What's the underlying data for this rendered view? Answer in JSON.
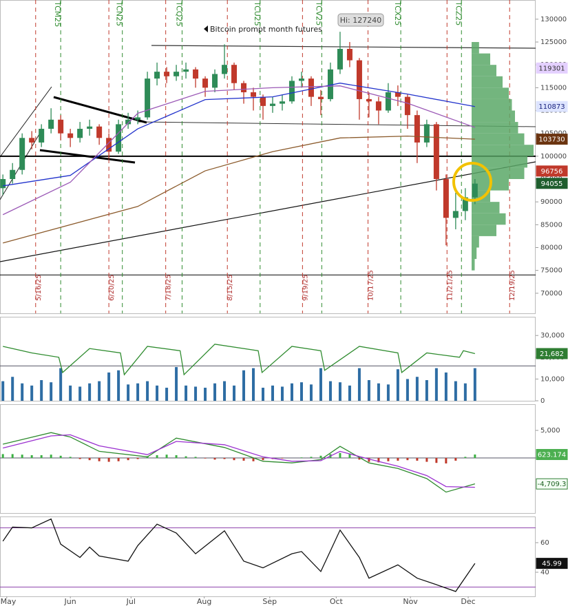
{
  "chart_data": [
    {
      "type": "candlestick",
      "ohlc": [
        [
          93000,
          96000,
          91500,
          95000
        ],
        [
          95000,
          98500,
          94000,
          97000
        ],
        [
          97000,
          105000,
          96000,
          104000
        ],
        [
          104000,
          105500,
          101500,
          103000
        ],
        [
          103000,
          107000,
          102000,
          106000
        ],
        [
          106000,
          110500,
          105000,
          108000
        ],
        [
          108000,
          109000,
          103500,
          105000
        ],
        [
          105000,
          106000,
          102000,
          104000
        ],
        [
          104000,
          107500,
          103000,
          106000
        ],
        [
          106000,
          108000,
          104500,
          106500
        ],
        [
          106500,
          107000,
          102500,
          104000
        ],
        [
          104000,
          105000,
          99500,
          101000
        ],
        [
          101000,
          108000,
          100500,
          107000
        ],
        [
          107000,
          109500,
          106000,
          108000
        ],
        [
          108000,
          110000,
          107000,
          108500
        ],
        [
          108500,
          118500,
          108000,
          117000
        ],
        [
          117000,
          120500,
          115500,
          118500
        ],
        [
          118500,
          119500,
          116000,
          117500
        ],
        [
          117500,
          120000,
          116500,
          118500
        ],
        [
          118500,
          120500,
          117000,
          119000
        ],
        [
          119000,
          119500,
          115000,
          117000
        ],
        [
          117000,
          117500,
          113000,
          115000
        ],
        [
          115000,
          119000,
          114000,
          118000
        ],
        [
          118000,
          124500,
          117000,
          120000
        ],
        [
          120000,
          120500,
          114500,
          116000
        ],
        [
          116000,
          116500,
          111500,
          114000
        ],
        [
          114000,
          115000,
          110000,
          113000
        ],
        [
          113000,
          113500,
          108000,
          111000
        ],
        [
          111000,
          113000,
          109500,
          111500
        ],
        [
          111500,
          113500,
          110000,
          112000
        ],
        [
          112000,
          117500,
          111500,
          116500
        ],
        [
          116500,
          118500,
          115000,
          117000
        ],
        [
          117000,
          117500,
          111000,
          113000
        ],
        [
          113000,
          114500,
          109000,
          112500
        ],
        [
          112500,
          120500,
          112000,
          119000
        ],
        [
          119000,
          127240,
          118000,
          123500
        ],
        [
          123500,
          125000,
          119500,
          121000
        ],
        [
          121000,
          121500,
          108000,
          112500
        ],
        [
          112500,
          114000,
          108500,
          112000
        ],
        [
          112000,
          113000,
          107000,
          110000
        ],
        [
          110000,
          116000,
          109500,
          114000
        ],
        [
          114000,
          115500,
          111000,
          113000
        ],
        [
          113000,
          113500,
          106000,
          109000
        ],
        [
          109000,
          110000,
          98500,
          103000
        ],
        [
          103000,
          108000,
          102000,
          107000
        ],
        [
          107000,
          107500,
          92500,
          95000
        ],
        [
          95000,
          96000,
          80500,
          86500
        ],
        [
          86500,
          92000,
          84000,
          88000
        ],
        [
          88000,
          93000,
          86000,
          91000
        ],
        [
          91000,
          95000,
          89500,
          94000
        ]
      ],
      "up_color": "#2e8b57",
      "down_color": "#c0392b",
      "xlim": [
        -0.3,
        55.3
      ],
      "ylim": [
        65600,
        134200
      ],
      "yticks": [
        70000,
        75000,
        80000,
        85000,
        90000,
        95000,
        100000,
        105000,
        110000,
        115000,
        120000,
        125000,
        130000
      ],
      "hlines": [
        {
          "value": 100000,
          "bold": true
        },
        {
          "value": 74000,
          "bold": false
        }
      ],
      "series": [
        {
          "color": "#2233cc",
          "x": [
            0,
            7,
            14,
            21,
            28,
            35,
            42,
            49
          ],
          "values": [
            93500,
            95800,
            106000,
            112400,
            113000,
            116000,
            113600,
            110873
          ]
        },
        {
          "color": "#9b59b6",
          "x": [
            0,
            7,
            14,
            21,
            28,
            35,
            42,
            49
          ],
          "values": [
            87200,
            94300,
            109400,
            114200,
            115000,
            115400,
            111600,
            106300
          ]
        },
        {
          "color": "#8b5a2b",
          "x": [
            0,
            14,
            21,
            28,
            35,
            42,
            49
          ],
          "values": [
            81000,
            89000,
            96800,
            101000,
            104000,
            104400,
            103730
          ]
        }
      ],
      "expiries": [
        {
          "label": "TCM25",
          "x": 6
        },
        {
          "label": "TCN25",
          "x": 12.4
        },
        {
          "label": "TCQ25",
          "x": 18.6
        },
        {
          "label": "TCU25",
          "x": 26.7
        },
        {
          "label": "TCV25",
          "x": 33.1
        },
        {
          "label": "TCX25",
          "x": 41.3
        },
        {
          "label": "TCZ25",
          "x": 47.6
        }
      ],
      "dates": [
        {
          "label": "5/16/25",
          "x": 3.4
        },
        {
          "label": "6/20/25",
          "x": 11
        },
        {
          "label": "7/18/25",
          "x": 16.9
        },
        {
          "label": "8/15/25",
          "x": 23.3
        },
        {
          "label": "9/19/25",
          "x": 31.1
        },
        {
          "label": "10/17/25",
          "x": 37.9
        },
        {
          "label": "11/21/25",
          "x": 46.1
        },
        {
          "label": "12/19/25",
          "x": 52.6
        }
      ],
      "price_labels": [
        {
          "value": 119301,
          "color": "#e4d0ff",
          "text_color": "#333"
        },
        {
          "value": 110873,
          "color": "#dde4ff",
          "text_color": "#1a237e"
        },
        {
          "value": 103730,
          "color": "#6b3410",
          "text_color": "#fff"
        },
        {
          "value": 96756,
          "color": "#c0392b",
          "text_color": "#fff"
        },
        {
          "value": 94055,
          "color": "#1f5e2e",
          "text_color": "#fff"
        }
      ],
      "volume_profile": {
        "bins": [
          75000,
          77500,
          80000,
          82500,
          85000,
          87500,
          90000,
          92500,
          95000,
          97500,
          100000,
          102500,
          105000,
          107500,
          110000,
          112500,
          115000,
          117500,
          120000,
          122500,
          125000
        ],
        "counts": [
          5,
          8,
          12,
          40,
          55,
          45,
          30,
          60,
          85,
          90,
          100,
          85,
          75,
          70,
          65,
          60,
          50,
          40,
          30,
          12
        ],
        "color": "#5aa867"
      },
      "high_label": "Hi: 127240",
      "note": "Bitcoin prompt month futures"
    },
    {
      "type": "bar",
      "values": [
        9000,
        11000,
        8000,
        7000,
        9500,
        8500,
        15000,
        7000,
        6500,
        8000,
        9000,
        13000,
        14000,
        7500,
        8000,
        9000,
        7000,
        6000,
        15500,
        7000,
        6500,
        6000,
        8000,
        9000,
        7000,
        14000,
        15000,
        6000,
        7000,
        6500,
        8000,
        8500,
        7500,
        15000,
        9000,
        8500,
        7000,
        15000,
        9500,
        8000,
        7500,
        14500,
        10000,
        11000,
        9500,
        15000,
        13000,
        9000,
        8000,
        15000
      ],
      "color": "#2e6da4",
      "xlim": [
        -0.3,
        55.3
      ],
      "ylim": [
        0,
        38600
      ],
      "yticks": [
        0,
        {
          "value": 10000,
          "label": "10,000"
        },
        {
          "value": 20000,
          "label": "20,000"
        },
        {
          "value": 30000,
          "label": "30,000"
        }
      ],
      "hlines": [
        16000
      ],
      "series": [
        {
          "color": "#2e8b2e",
          "x": [
            0,
            3,
            5.8,
            6.2,
            9,
            12.2,
            12.6,
            15,
            18.4,
            18.8,
            22,
            26.5,
            26.9,
            30,
            33,
            33.4,
            37,
            41,
            41.4,
            44,
            47.4,
            47.8,
            49
          ],
          "values": [
            25000,
            22000,
            20000,
            13000,
            24000,
            22000,
            12000,
            25000,
            23000,
            12000,
            26000,
            23000,
            13000,
            25000,
            23000,
            14000,
            25000,
            22000,
            13000,
            22000,
            20000,
            23000,
            21682
          ],
          "last_label": "21,682"
        }
      ]
    },
    {
      "type": "line",
      "xlim": [
        -0.3,
        55.3
      ],
      "ylim": [
        -10000,
        9750
      ],
      "yticks": [
        0,
        {
          "value": 5000,
          "label": "5,000"
        }
      ],
      "hlines": [
        0
      ],
      "histogram": {
        "values": [
          700,
          700,
          600,
          500,
          500,
          600,
          400,
          200,
          -200,
          -400,
          -600,
          -700,
          -600,
          -400,
          -200,
          300,
          500,
          600,
          500,
          300,
          200,
          -100,
          -300,
          -200,
          -400,
          -500,
          -600,
          -400,
          -200,
          -100,
          0,
          100,
          200,
          400,
          700,
          900,
          800,
          -300,
          -700,
          -800,
          -600,
          -500,
          -400,
          -500,
          -700,
          -900,
          -1000,
          -500,
          200,
          623.174
        ],
        "up_color": "#3cb043",
        "down_color": "#c0392b"
      },
      "series": [
        {
          "color": "#2e8b2e",
          "x": [
            0,
            5,
            7,
            10,
            15,
            18,
            23,
            27,
            30,
            33,
            35,
            38,
            41,
            44,
            46,
            49
          ],
          "values": [
            2500,
            4600,
            3800,
            1200,
            200,
            3600,
            1900,
            -600,
            -900,
            -300,
            2100,
            -900,
            -1900,
            -3750,
            -6200,
            -4709.3
          ],
          "last_label": "-4,709.3"
        },
        {
          "color": "#9b30d0",
          "x": [
            0,
            5,
            7,
            10,
            15,
            18,
            23,
            27,
            30,
            33,
            35,
            38,
            41,
            44,
            46,
            49
          ],
          "values": [
            1800,
            4000,
            4200,
            2200,
            600,
            3000,
            2400,
            200,
            -600,
            -500,
            1200,
            -200,
            -1500,
            -3200,
            -5200,
            -5332
          ]
        }
      ]
    },
    {
      "type": "line",
      "xlim": [
        -0.3,
        55.3
      ],
      "ylim": [
        23.7,
        77.7
      ],
      "yticks": [
        40,
        60
      ],
      "hlines": [
        70,
        30
      ],
      "series": [
        {
          "color": "#111",
          "x": [
            0,
            1,
            3,
            5,
            6,
            8,
            9,
            10,
            13,
            14,
            16,
            18,
            20,
            23,
            25,
            27,
            30,
            31,
            33,
            35,
            37,
            38,
            41,
            43,
            45,
            47,
            49
          ],
          "values": [
            61,
            70.5,
            70,
            76,
            59,
            50,
            57,
            51,
            47.5,
            58,
            72.5,
            66.5,
            52.5,
            68,
            47.5,
            43,
            52.5,
            54,
            40.5,
            68.5,
            50,
            36,
            45,
            36,
            31.6,
            27,
            45.99
          ]
        }
      ],
      "xticks": [
        {
          "value": 0.4,
          "label": "May"
        },
        {
          "value": 7,
          "label": "Jun"
        },
        {
          "value": 13.3,
          "label": "Jul"
        },
        {
          "value": 20.9,
          "label": "Aug"
        },
        {
          "value": 27.7,
          "label": "Sep"
        },
        {
          "value": 34.6,
          "label": "Oct"
        },
        {
          "value": 42.3,
          "label": "Nov"
        },
        {
          "value": 48.3,
          "label": "Dec"
        }
      ]
    }
  ]
}
